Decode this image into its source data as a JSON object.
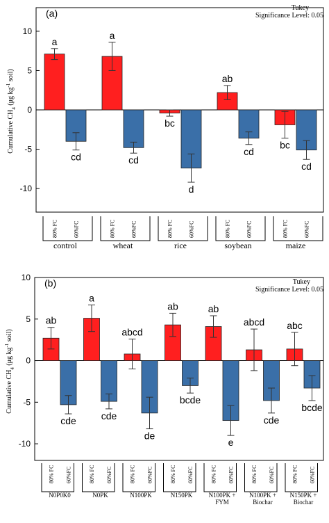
{
  "chart_data": [
    {
      "type": "bar",
      "panel_label": "(a)",
      "test_name": "Tukey",
      "significance_text": "Significance Level: 0.05",
      "ylabel_prefix": "Cumulative CH",
      "ylabel_sub": "4",
      "ylabel_mid": " (μg kg",
      "ylabel_sup": "-1",
      "ylabel_suffix": " soil)",
      "ylim": [
        -13,
        13
      ],
      "yticks": [
        -10,
        -5,
        0,
        5,
        10
      ],
      "categories": [
        "control",
        "wheat",
        "rice",
        "soybean",
        "maize"
      ],
      "sub_labels": [
        "80% FC",
        "60%FC"
      ],
      "series": [
        {
          "sub_label": "80% FC",
          "color": "#ff1f1f",
          "values": [
            7.1,
            6.8,
            -0.4,
            2.2,
            -1.9
          ],
          "errors": [
            0.7,
            1.8,
            0.4,
            0.9,
            1.7
          ],
          "letters": [
            "a",
            "a",
            "bc",
            "ab",
            "bc"
          ]
        },
        {
          "sub_label": "60%FC",
          "color": "#3a6fa8",
          "values": [
            -4.0,
            -4.8,
            -7.4,
            -3.6,
            -5.1
          ],
          "errors": [
            1.1,
            0.7,
            1.8,
            0.8,
            1.2
          ],
          "letters": [
            "cd",
            "cd",
            "d",
            "cd",
            "cd"
          ]
        }
      ]
    },
    {
      "type": "bar",
      "panel_label": "(b)",
      "test_name": "Tukey",
      "significance_text": "Significance Level: 0.05",
      "ylabel_prefix": "Cumulative CH",
      "ylabel_sub": "4",
      "ylabel_mid": " (μg kg",
      "ylabel_sup": "-1",
      "ylabel_suffix": " soil)",
      "ylim": [
        -12,
        10
      ],
      "yticks": [
        -10,
        -5,
        0,
        5,
        10
      ],
      "categories": [
        [
          "N0P0K0"
        ],
        [
          "N0PK"
        ],
        [
          "N100PK"
        ],
        [
          "N150PK"
        ],
        [
          "N100PK +",
          "FYM"
        ],
        [
          "N100PK +",
          "Biochar"
        ],
        [
          "N150PK +",
          "Biochar"
        ]
      ],
      "sub_labels": [
        "80% FC",
        "60%FC"
      ],
      "series": [
        {
          "sub_label": "80% FC",
          "color": "#ff1f1f",
          "values": [
            2.7,
            5.1,
            0.8,
            4.3,
            4.1,
            1.3,
            1.4
          ],
          "errors": [
            1.3,
            1.6,
            1.8,
            1.4,
            1.3,
            2.5,
            2.0
          ],
          "letters": [
            "ab",
            "a",
            "abcd",
            "ab",
            "ab",
            "abcd",
            "abc"
          ]
        },
        {
          "sub_label": "60%FC",
          "color": "#3a6fa8",
          "values": [
            -5.3,
            -4.9,
            -6.3,
            -3.0,
            -7.2,
            -4.8,
            -3.3
          ],
          "errors": [
            1.1,
            0.9,
            1.9,
            0.9,
            1.8,
            1.5,
            1.5
          ],
          "letters": [
            "cde",
            "cde",
            "de",
            "bcde",
            "e",
            "cde",
            "bcde"
          ]
        }
      ]
    }
  ]
}
